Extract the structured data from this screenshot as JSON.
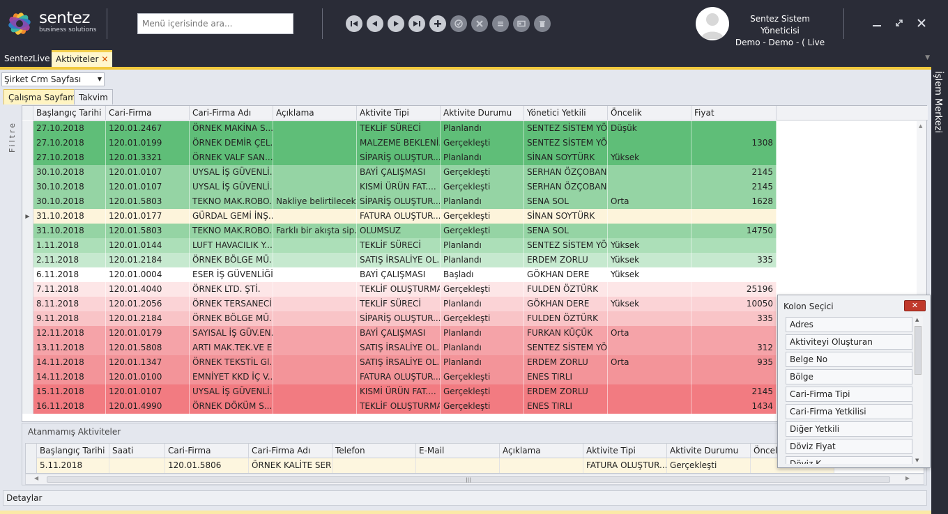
{
  "app": {
    "brand_name": "sentez",
    "brand_tagline": "business solutions",
    "search_placeholder": "Menü içerisinde ara...",
    "user_name": "Sentez Sistem Yöneticisi",
    "user_context": "Demo - Demo - ( Live"
  },
  "toolbar": [
    "first-icon",
    "prev-icon",
    "next-icon",
    "last-icon",
    "add-icon",
    "approve-icon",
    "cancel-icon",
    "list-icon",
    "card-icon",
    "delete-icon"
  ],
  "tabs": [
    {
      "label": "SentezLive"
    },
    {
      "label": "Aktiviteler",
      "close": "✕"
    }
  ],
  "right_panel": {
    "label": "İşlem Merkezi"
  },
  "page_select": {
    "value": "Şirket Crm Sayfası"
  },
  "subtabs": [
    "Çalışma Sayfam",
    "Takvim"
  ],
  "filter_label": "Filtre",
  "grid": {
    "columns": [
      "Başlangıç Tarihi",
      "Cari-Firma",
      "Cari-Firma Adı",
      "Açıklama",
      "Aktivite Tipi",
      "Aktivite Durumu",
      "Yönetici Yetkili",
      "Öncelik",
      "Fiyat"
    ],
    "sort_icon": "▲",
    "current_row_marker": "▶",
    "rows": [
      {
        "c": [
          "27.10.2018",
          "120.01.2467",
          "ÖRNEK MAKİNA S...",
          "",
          "TEKLİF SÜRECİ",
          "Planlandı",
          "SENTEZ SİSTEM YÖ...",
          "Düşük",
          ""
        ],
        "bg": "#5fbe78"
      },
      {
        "c": [
          "27.10.2018",
          "120.01.0199",
          "ÖRNEK DEMİR ÇEL...",
          "",
          "MALZEME BEKLENİ...",
          "Gerçekleşti",
          "SENTEZ SİSTEM YÖ...",
          "",
          "1308"
        ],
        "bg": "#5fbe78"
      },
      {
        "c": [
          "27.10.2018",
          "120.01.3321",
          "ÖRNEK VALF SAN...",
          "",
          "SİPARİŞ OLUŞTUR...",
          "Planlandı",
          "SİNAN SOYTÜRK",
          "Yüksek",
          ""
        ],
        "bg": "#5fbe78"
      },
      {
        "c": [
          "30.10.2018",
          "120.01.0107",
          "UYSAL İŞ GÜVENLİ...",
          "",
          "BAYİ ÇALIŞMASI",
          "Gerçekleşti",
          "SERHAN ÖZÇOBAN",
          "",
          "2145"
        ],
        "bg": "#95d4a4"
      },
      {
        "c": [
          "30.10.2018",
          "120.01.0107",
          "UYSAL İŞ GÜVENLİ...",
          "",
          "KISMİ ÜRÜN FAT....",
          "Gerçekleşti",
          "SERHAN ÖZÇOBAN",
          "",
          "2145"
        ],
        "bg": "#95d4a4"
      },
      {
        "c": [
          "30.10.2018",
          "120.01.5803",
          "TEKNO MAK.ROBO...",
          "Nakliye belirtilecek",
          "SİPARİŞ OLUŞTUR...",
          "Planlandı",
          "SENA SOL",
          "Orta",
          "1628"
        ],
        "bg": "#95d4a4"
      },
      {
        "c": [
          "31.10.2018",
          "120.01.0177",
          "GÜRDAL GEMİ İNŞ...",
          "",
          "FATURA OLUŞTUR...",
          "Gerçekleşti",
          "SİNAN SOYTÜRK",
          "",
          ""
        ],
        "bg": "#fdf4db",
        "current": true
      },
      {
        "c": [
          "31.10.2018",
          "120.01.5803",
          "TEKNO MAK.ROBO...",
          "Farklı bir akışta sip...",
          "OLUMSUZ",
          "Gerçekleşti",
          "SENA SOL",
          "",
          "14750"
        ],
        "bg": "#95d4a4"
      },
      {
        "c": [
          "1.11.2018",
          "120.01.0144",
          "LUFT HAVACILIK Y...",
          "",
          "TEKLİF SÜRECİ",
          "Planlandı",
          "SENTEZ SİSTEM YÖ...",
          "Yüksek",
          ""
        ],
        "bg": "#acdfb8"
      },
      {
        "c": [
          "2.11.2018",
          "120.01.2184",
          "ÖRNEK BÖLGE MÜ...",
          "",
          "SATIŞ İRSALİYE OL...",
          "Planlandı",
          "ERDEM ZORLU",
          "Yüksek",
          "335"
        ],
        "bg": "#c6e9cf"
      },
      {
        "c": [
          "6.11.2018",
          "120.01.0004",
          "ESER İŞ GÜVENLİĞİ...",
          "",
          "BAYİ ÇALIŞMASI",
          "Başladı",
          "GÖKHAN DERE",
          "Yüksek",
          ""
        ],
        "bg": "#ffffff"
      },
      {
        "c": [
          "7.11.2018",
          "120.01.4040",
          "ÖRNEK LTD. ŞTİ.",
          "",
          "TEKLİF OLUŞTURMA",
          "Gerçekleşti",
          "FULDEN ÖZTÜRK",
          "",
          "25196"
        ],
        "bg": "#fde6e7"
      },
      {
        "c": [
          "8.11.2018",
          "120.01.2056",
          "ÖRNEK TERSANECİ...",
          "",
          "TEKLİF SÜRECİ",
          "Planlandı",
          "GÖKHAN DERE",
          "Yüksek",
          "10050"
        ],
        "bg": "#fbd3d6"
      },
      {
        "c": [
          "9.11.2018",
          "120.01.2184",
          "ÖRNEK BÖLGE MÜ...",
          "",
          "SİPARİŞ OLUŞTUR...",
          "Gerçekleşti",
          "FULDEN ÖZTÜRK",
          "",
          "335"
        ],
        "bg": "#f9c4c7"
      },
      {
        "c": [
          "12.11.2018",
          "120.01.0179",
          "SAYISAL İŞ GÜV.EN...",
          "",
          "BAYİ ÇALIŞMASI",
          "Planlandı",
          "FURKAN KÜÇÜK",
          "Orta",
          ""
        ],
        "bg": "#f5a3a8"
      },
      {
        "c": [
          "13.11.2018",
          "120.01.5808",
          "ARTI MAK.TEK.VE E...",
          "",
          "SATIŞ İRSALİYE OL...",
          "Planlandı",
          "SENTEZ SİSTEM YÖ...",
          "",
          "312"
        ],
        "bg": "#f5a3a8"
      },
      {
        "c": [
          "14.11.2018",
          "120.01.1347",
          "ÖRNEK TEKSTİL Gl...",
          "",
          "SATIŞ İRSALİYE OL...",
          "Planlandı",
          "ERDEM ZORLU",
          "Orta",
          "935"
        ],
        "bg": "#f39499"
      },
      {
        "c": [
          "14.11.2018",
          "120.01.0100",
          "EMNİYET KKD İÇ V...",
          "",
          "FATURA OLUŞTUR...",
          "Gerçekleşti",
          "ENES TIRLI",
          "",
          ""
        ],
        "bg": "#f39499"
      },
      {
        "c": [
          "15.11.2018",
          "120.01.0107",
          "UYSAL İŞ GÜVENLİ...",
          "",
          "KISMİ ÜRÜN FAT....",
          "Gerçekleşti",
          "ERDEM ZORLU",
          "",
          "2145"
        ],
        "bg": "#f27b81"
      },
      {
        "c": [
          "16.11.2018",
          "120.01.4990",
          "ÖRNEK DÖKÜM S...",
          "",
          "TEKLİF OLUŞTURMA",
          "Gerçekleşti",
          "ENES TIRLI",
          "",
          "1434"
        ],
        "bg": "#f27b81"
      }
    ]
  },
  "unassigned": {
    "title": "Atanmamış Aktiviteler",
    "columns": [
      "Başlangıç Tarihi",
      "Saati",
      "Cari-Firma",
      "Cari-Firma Adı",
      "Telefon",
      "E-Mail",
      "Açıklama",
      "Aktivite Tipi",
      "Aktivite Durumu",
      "Önceli"
    ],
    "rows": [
      {
        "c": [
          "5.11.2018",
          "",
          "120.01.5806",
          "ÖRNEK KALİTE SER...",
          "",
          "",
          "",
          "FATURA OLUŞTUR...",
          "Gerçekleşti",
          ""
        ]
      }
    ]
  },
  "details_label": "Detaylar",
  "column_chooser": {
    "title": "Kolon Seçici",
    "close": "✕",
    "items": [
      "Adres",
      "Aktiviteyi Oluşturan",
      "Belge No",
      "Bölge",
      "Cari-Firma Tipi",
      "Cari-Firma Yetkilisi",
      "Diğer Yetkili",
      "Döviz Fiyat",
      "Döviz K..."
    ]
  },
  "colors": {
    "topbar": "#2a2c37",
    "accent": "#f2c93c",
    "close_red": "#c0392b"
  }
}
